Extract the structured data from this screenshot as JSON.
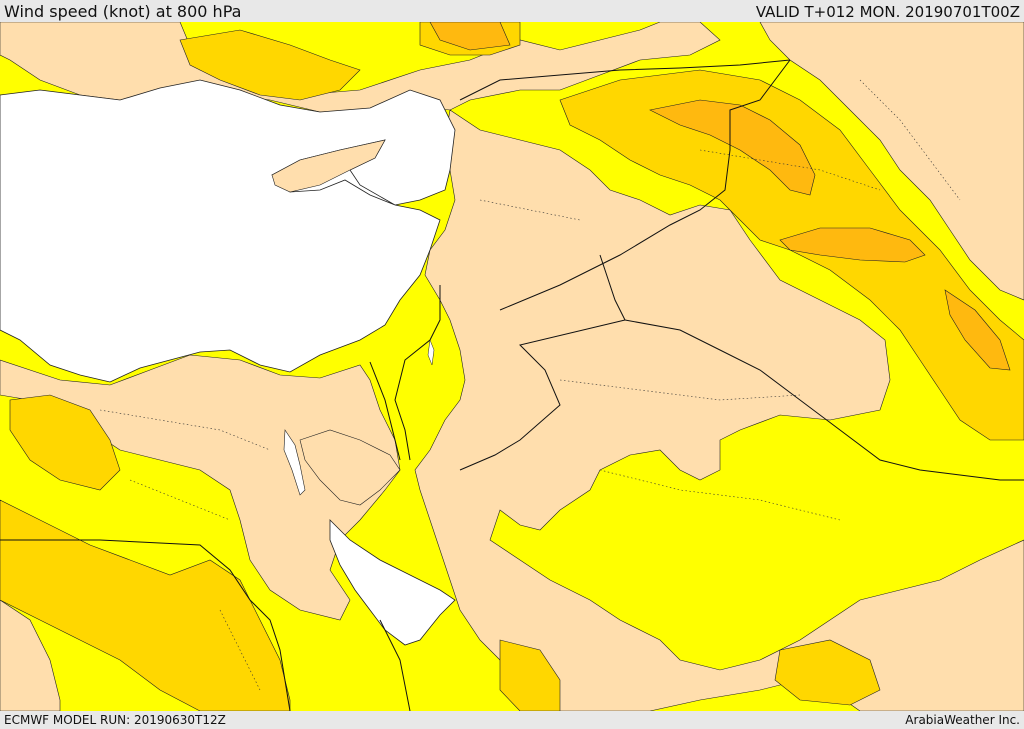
{
  "header": {
    "title": "Wind speed (knot) at 800 hPa",
    "valid": "VALID T+012 MON. 20190701T00Z"
  },
  "footer": {
    "model_run": "ECMWF MODEL RUN: 20190630T12Z",
    "credit": "ArabiaWeather Inc."
  },
  "map": {
    "colors": {
      "sea": "#ffffff",
      "low_wind": "#ffdead",
      "moderate_wind": "#ffff00",
      "strong_wind": "#ffd700",
      "very_strong_wind": "#ffb90f",
      "border": "#000000"
    }
  }
}
